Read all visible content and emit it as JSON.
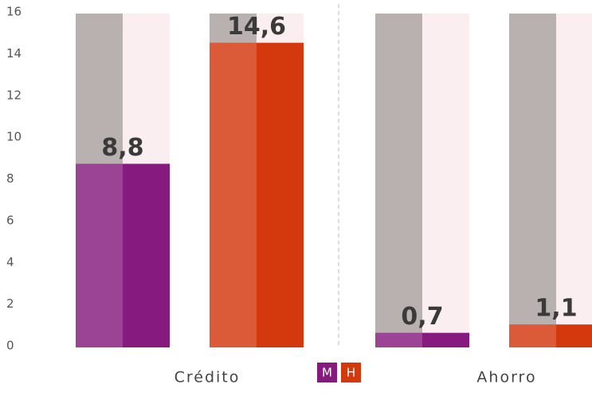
{
  "chart_data": {
    "type": "bar",
    "categories": [
      "Crédito",
      "Ahorro"
    ],
    "series": [
      {
        "name": "M",
        "color": "#861a7e",
        "values": [
          8.8,
          0.7
        ],
        "value_labels": [
          "8,8",
          "0,7"
        ]
      },
      {
        "name": "H",
        "color": "#d4380d",
        "values": [
          14.6,
          1.1
        ],
        "value_labels": [
          "14,6",
          "1,1"
        ]
      }
    ],
    "ylim": [
      0,
      16
    ],
    "yticks": [
      0,
      2,
      4,
      6,
      8,
      10,
      12,
      14,
      16
    ]
  }
}
